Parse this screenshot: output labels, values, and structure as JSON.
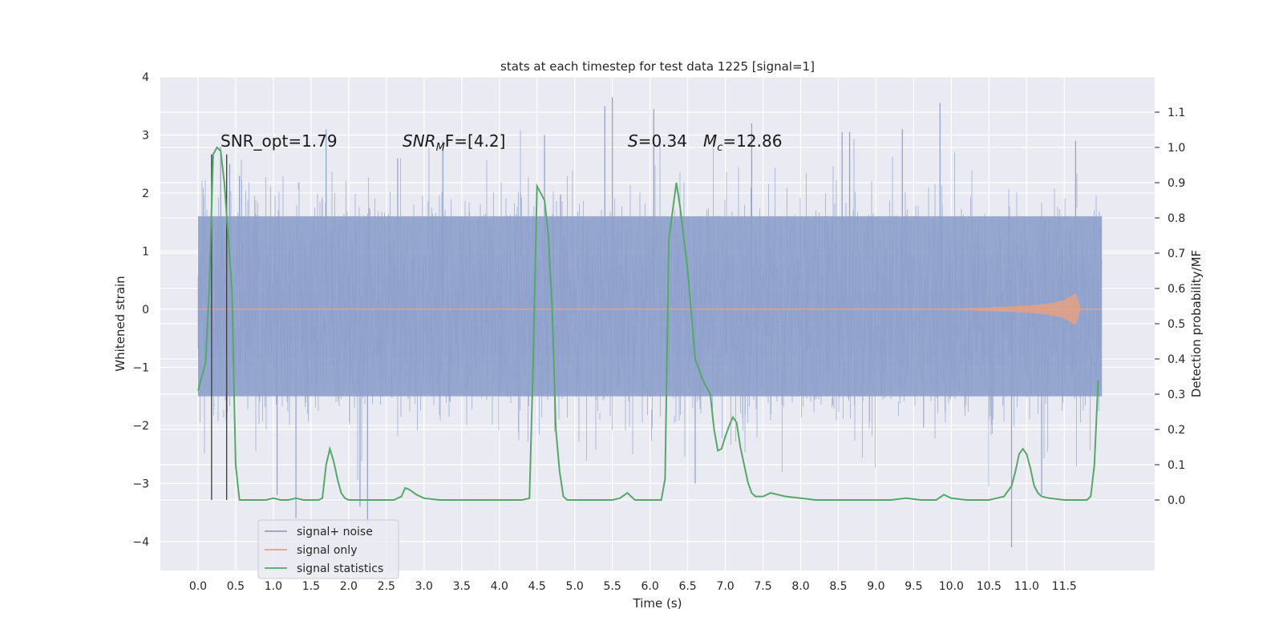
{
  "chart_data": {
    "type": "line",
    "title": "stats at each timestep for test data 1225 [signal=1]",
    "xlabel": "Time (s)",
    "ylabel": "Whitened strain",
    "y2label": "Detection probability/MF",
    "xlim": [
      -0.5,
      12.7
    ],
    "ylim": [
      -4.5,
      4.0
    ],
    "y2lim": [
      -0.2,
      1.2
    ],
    "x_ticks": [
      0.0,
      0.5,
      1.0,
      1.5,
      2.0,
      2.5,
      3.0,
      3.5,
      4.0,
      4.5,
      5.0,
      5.5,
      6.0,
      6.5,
      7.0,
      7.5,
      8.0,
      8.5,
      9.0,
      9.5,
      10.0,
      10.5,
      11.0,
      11.5
    ],
    "x_tick_labels": [
      "0.0",
      "0.5",
      "1.0",
      "1.5",
      "2.0",
      "2.5",
      "3.0",
      "3.5",
      "4.0",
      "4.5",
      "5.0",
      "5.5",
      "6.0",
      "6.5",
      "7.0",
      "7.5",
      "8.0",
      "8.5",
      "9.0",
      "9.5",
      "10.0",
      "10.5",
      "11.0",
      "11.5"
    ],
    "y_ticks": [
      4,
      3,
      2,
      1,
      0,
      -1,
      -2,
      -3,
      -4
    ],
    "y_tick_labels": [
      "4",
      "3",
      "2",
      "1",
      "0",
      "−1",
      "−2",
      "−3",
      "−4"
    ],
    "y2_ticks": [
      1.1,
      1.0,
      0.9,
      0.8,
      0.7,
      0.6,
      0.5,
      0.4,
      0.3,
      0.2,
      0.1,
      0.0
    ],
    "y2_tick_labels": [
      "1.1",
      "1.0",
      "0.9",
      "0.8",
      "0.7",
      "0.6",
      "0.5",
      "0.4",
      "0.3",
      "0.2",
      "0.1",
      "0.0"
    ],
    "grid": true,
    "legend_position": "lower-left",
    "annotations": {
      "snr_opt": "SNR_opt=1.79",
      "snr_mf_label": "SNR",
      "snr_mf_sub": "M",
      "snr_mf_value": "F=[4.2]",
      "s_label": "S",
      "s_value": "=0.34",
      "mc_label": "M",
      "mc_sub": "c",
      "mc_value": "=12.86"
    },
    "vertical_markers_x": [
      0.18,
      0.38
    ],
    "series": [
      {
        "name": "signal+ noise",
        "color": "#8da0cb",
        "band_x": [
          0,
          12
        ],
        "band_core": [
          -1.5,
          1.6
        ],
        "range": [
          -4.1,
          3.65
        ],
        "spikes": [
          {
            "x": 0.3,
            "y": 2.8
          },
          {
            "x": 0.42,
            "y": 2.5
          },
          {
            "x": 0.55,
            "y": 2.3
          },
          {
            "x": 1.05,
            "y": -3.2
          },
          {
            "x": 1.3,
            "y": -3.6
          },
          {
            "x": 1.7,
            "y": 3.1
          },
          {
            "x": 2.15,
            "y": -3.4
          },
          {
            "x": 2.25,
            "y": -3.7
          },
          {
            "x": 2.65,
            "y": 2.6
          },
          {
            "x": 3.25,
            "y": 2.9
          },
          {
            "x": 4.6,
            "y": 3.0
          },
          {
            "x": 5.4,
            "y": 3.5
          },
          {
            "x": 5.5,
            "y": 3.65
          },
          {
            "x": 6.05,
            "y": 3.45
          },
          {
            "x": 6.6,
            "y": -3.0
          },
          {
            "x": 7.35,
            "y": 3.2
          },
          {
            "x": 8.55,
            "y": 3.05
          },
          {
            "x": 8.65,
            "y": 3.05
          },
          {
            "x": 9.35,
            "y": 3.1
          },
          {
            "x": 9.85,
            "y": 3.55
          },
          {
            "x": 10.8,
            "y": -4.1
          },
          {
            "x": 11.2,
            "y": -3.2
          },
          {
            "x": 11.65,
            "y": 2.9
          }
        ]
      },
      {
        "name": "signal only",
        "color": "#e5a184",
        "x": [
          0.0,
          10.0,
          10.5,
          11.0,
          11.3,
          11.5,
          11.65,
          11.72,
          12.0
        ],
        "amplitude": [
          0.0,
          0.01,
          0.03,
          0.06,
          0.1,
          0.16,
          0.28,
          0.0,
          0.0
        ]
      },
      {
        "name": "signal statistics",
        "color": "#55a868",
        "x": [
          0.0,
          0.1,
          0.15,
          0.2,
          0.25,
          0.3,
          0.35,
          0.4,
          0.45,
          0.5,
          0.55,
          0.6,
          0.65,
          0.7,
          0.8,
          0.9,
          1.0,
          1.1,
          1.2,
          1.3,
          1.4,
          1.5,
          1.6,
          1.65,
          1.7,
          1.75,
          1.8,
          1.85,
          1.9,
          1.95,
          2.0,
          2.1,
          2.2,
          2.4,
          2.6,
          2.7,
          2.75,
          2.8,
          2.9,
          3.0,
          3.2,
          3.5,
          4.0,
          4.3,
          4.4,
          4.45,
          4.5,
          4.55,
          4.6,
          4.65,
          4.7,
          4.75,
          4.8,
          4.85,
          4.9,
          4.95,
          5.0,
          5.2,
          5.5,
          5.6,
          5.7,
          5.75,
          5.8,
          5.9,
          6.0,
          6.15,
          6.2,
          6.25,
          6.3,
          6.35,
          6.4,
          6.5,
          6.6,
          6.7,
          6.8,
          6.85,
          6.9,
          6.95,
          7.0,
          7.05,
          7.1,
          7.15,
          7.2,
          7.25,
          7.3,
          7.35,
          7.4,
          7.5,
          7.6,
          7.8,
          8.0,
          8.2,
          8.5,
          8.8,
          9.0,
          9.2,
          9.4,
          9.6,
          9.8,
          9.9,
          10.0,
          10.2,
          10.4,
          10.5,
          10.6,
          10.7,
          10.8,
          10.85,
          10.9,
          10.95,
          11.0,
          11.05,
          11.1,
          11.15,
          11.2,
          11.3,
          11.5,
          11.7,
          11.8,
          11.85,
          11.9,
          11.95
        ],
        "y": [
          0.31,
          0.39,
          0.61,
          0.98,
          1.0,
          0.99,
          0.9,
          0.75,
          0.6,
          0.1,
          0.0,
          0.0,
          0.0,
          0.0,
          0.0,
          0.0,
          0.005,
          0.0,
          0.0,
          0.005,
          0.0,
          0.0,
          0.0,
          0.005,
          0.1,
          0.145,
          0.11,
          0.06,
          0.02,
          0.005,
          0.0,
          0.0,
          0.0,
          0.0,
          0.0,
          0.01,
          0.034,
          0.03,
          0.015,
          0.005,
          0.0,
          0.0,
          0.0,
          0.0,
          0.005,
          0.4,
          0.89,
          0.87,
          0.85,
          0.75,
          0.55,
          0.2,
          0.08,
          0.01,
          0.0,
          0.0,
          0.0,
          0.0,
          0.0,
          0.005,
          0.02,
          0.01,
          0.0,
          0.0,
          0.0,
          0.0,
          0.06,
          0.74,
          0.82,
          0.9,
          0.83,
          0.65,
          0.4,
          0.34,
          0.3,
          0.2,
          0.14,
          0.145,
          0.18,
          0.21,
          0.235,
          0.22,
          0.15,
          0.1,
          0.05,
          0.02,
          0.01,
          0.01,
          0.02,
          0.01,
          0.005,
          0.0,
          0.0,
          0.0,
          0.0,
          0.0,
          0.005,
          0.0,
          0.0,
          0.015,
          0.005,
          0.0,
          0.0,
          0.0,
          0.005,
          0.01,
          0.04,
          0.08,
          0.13,
          0.145,
          0.13,
          0.09,
          0.04,
          0.02,
          0.01,
          0.005,
          0.0,
          0.0,
          0.0,
          0.01,
          0.1,
          0.34
        ]
      }
    ]
  }
}
